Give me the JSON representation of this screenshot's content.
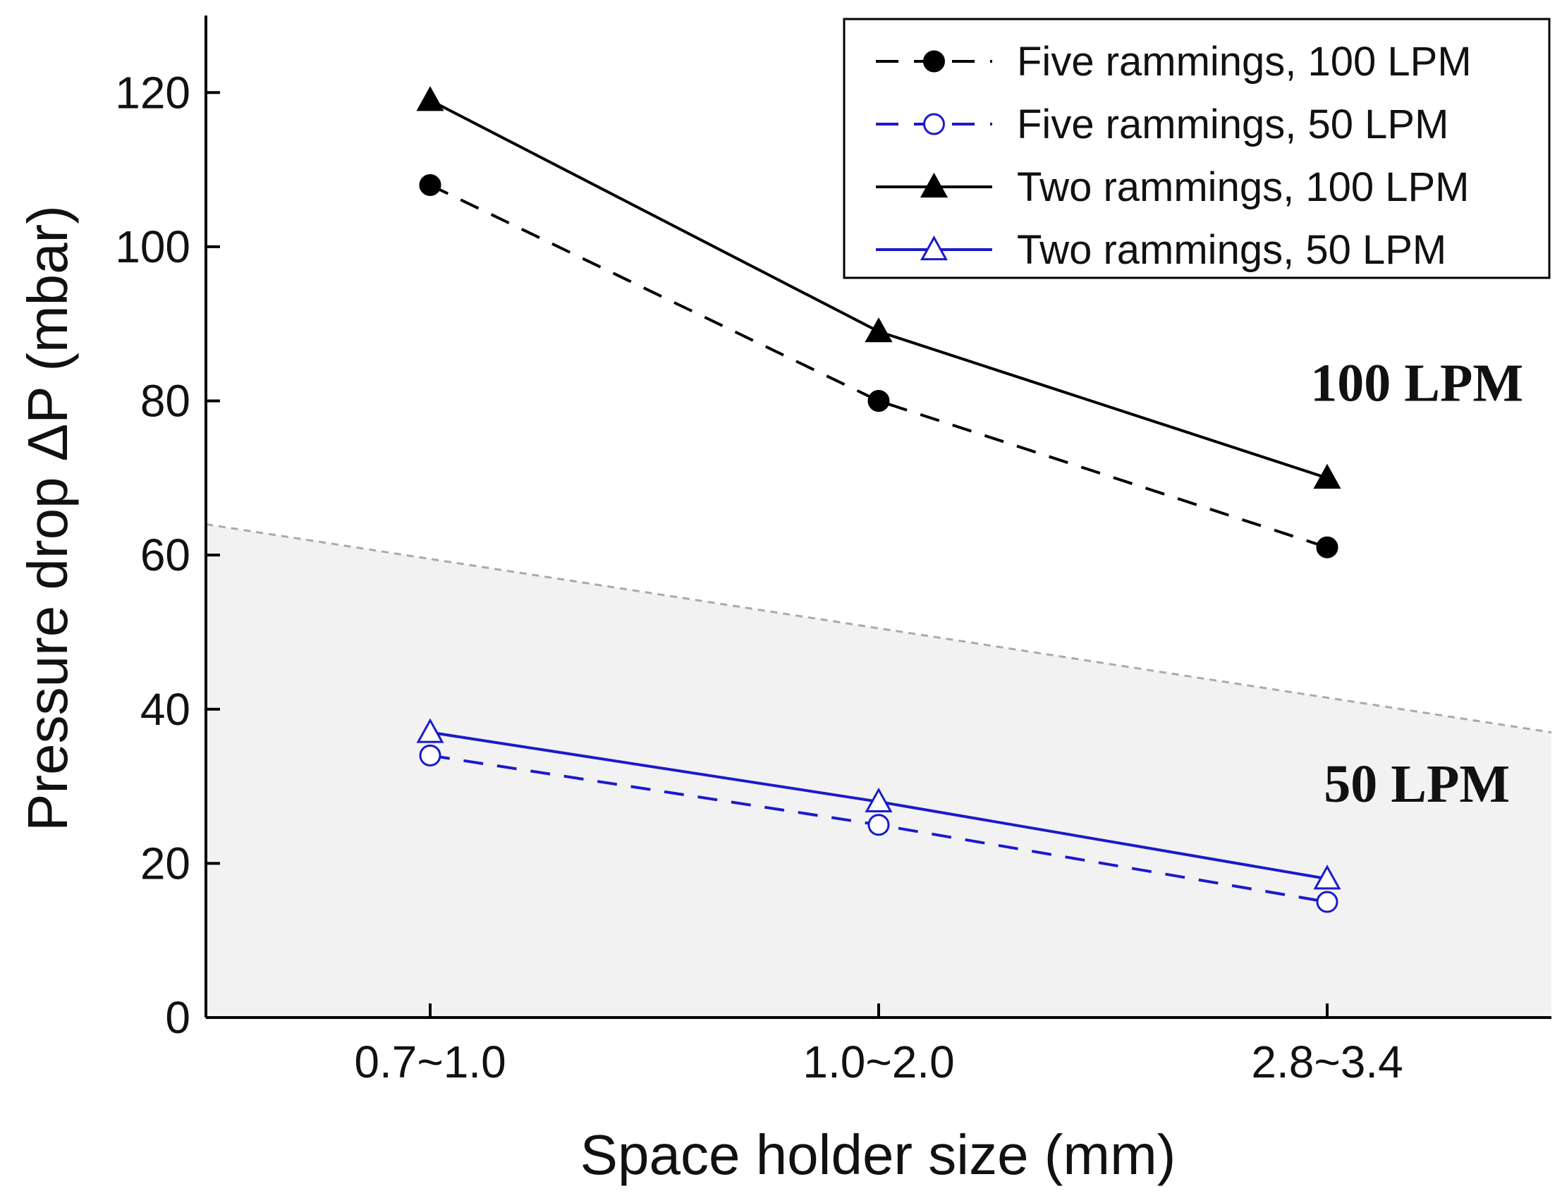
{
  "chart_data": {
    "type": "line",
    "xlabel": "Space holder size (mm)",
    "ylabel": "Pressure drop ΔP (mbar)",
    "categories": [
      "0.7~1.0",
      "1.0~2.0",
      "2.8~3.4"
    ],
    "ylim": [
      0,
      130
    ],
    "yticks": [
      0,
      20,
      40,
      60,
      80,
      100,
      120
    ],
    "legend_position": "top-right",
    "grid": false,
    "series": [
      {
        "name": "Five rammings, 100 LPM",
        "values": [
          108,
          80,
          61
        ],
        "color": "#000000",
        "line": "dashed",
        "marker": "circle",
        "filled": true
      },
      {
        "name": "Five rammings, 50 LPM",
        "values": [
          34,
          25,
          15
        ],
        "color": "#1a1acc",
        "line": "dashed",
        "marker": "circle",
        "filled": false
      },
      {
        "name": "Two rammings, 100 LPM",
        "values": [
          119,
          89,
          70
        ],
        "color": "#000000",
        "line": "solid",
        "marker": "triangle",
        "filled": true
      },
      {
        "name": "Two rammings, 50 LPM",
        "values": [
          37,
          28,
          18
        ],
        "color": "#1a1acc",
        "line": "solid",
        "marker": "triangle",
        "filled": false
      }
    ],
    "annotations": [
      {
        "text": "100 LPM",
        "x": 2.2,
        "y": 80
      },
      {
        "text": "50 LPM",
        "x": 2.2,
        "y": 28
      }
    ],
    "shaded_region": {
      "color": "#f2f2f2",
      "boundary_start": [
        -0.5,
        64
      ],
      "boundary_end": [
        2.5,
        37
      ]
    }
  }
}
